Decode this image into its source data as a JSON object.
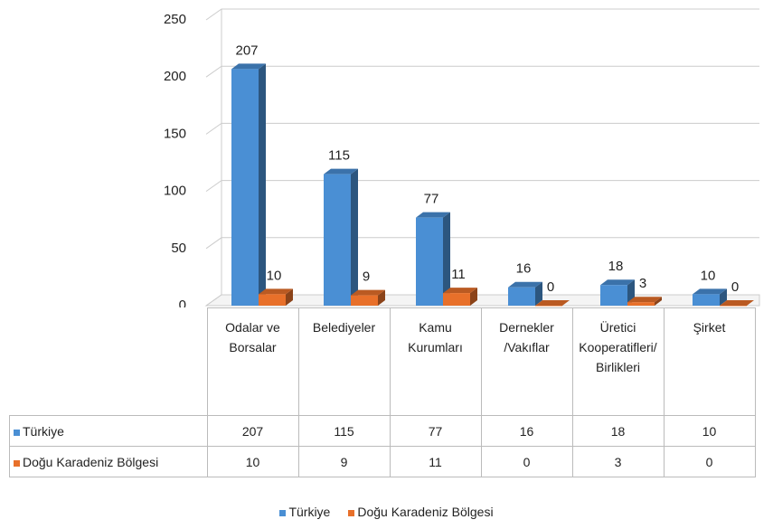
{
  "chart_data": {
    "type": "bar3d",
    "categories": [
      "Odalar ve Borsalar",
      "Belediyeler",
      "Kamu Kurumları",
      "Dernekler /Vakıflar",
      "Üretici Kooperatifleri/Birlikleri",
      "Şirket"
    ],
    "series": [
      {
        "name": "Türkiye",
        "color": "#4a8fd4",
        "values": [
          207,
          115,
          77,
          16,
          18,
          10
        ]
      },
      {
        "name": "Doğu Karadeniz Bölgesi",
        "color": "#e8702a",
        "values": [
          10,
          9,
          11,
          0,
          3,
          0
        ]
      }
    ],
    "ylim": [
      0,
      250
    ],
    "yticks": [
      0,
      50,
      100,
      150,
      200,
      250
    ],
    "grid": true,
    "legend": "bottom",
    "data_table": true
  }
}
